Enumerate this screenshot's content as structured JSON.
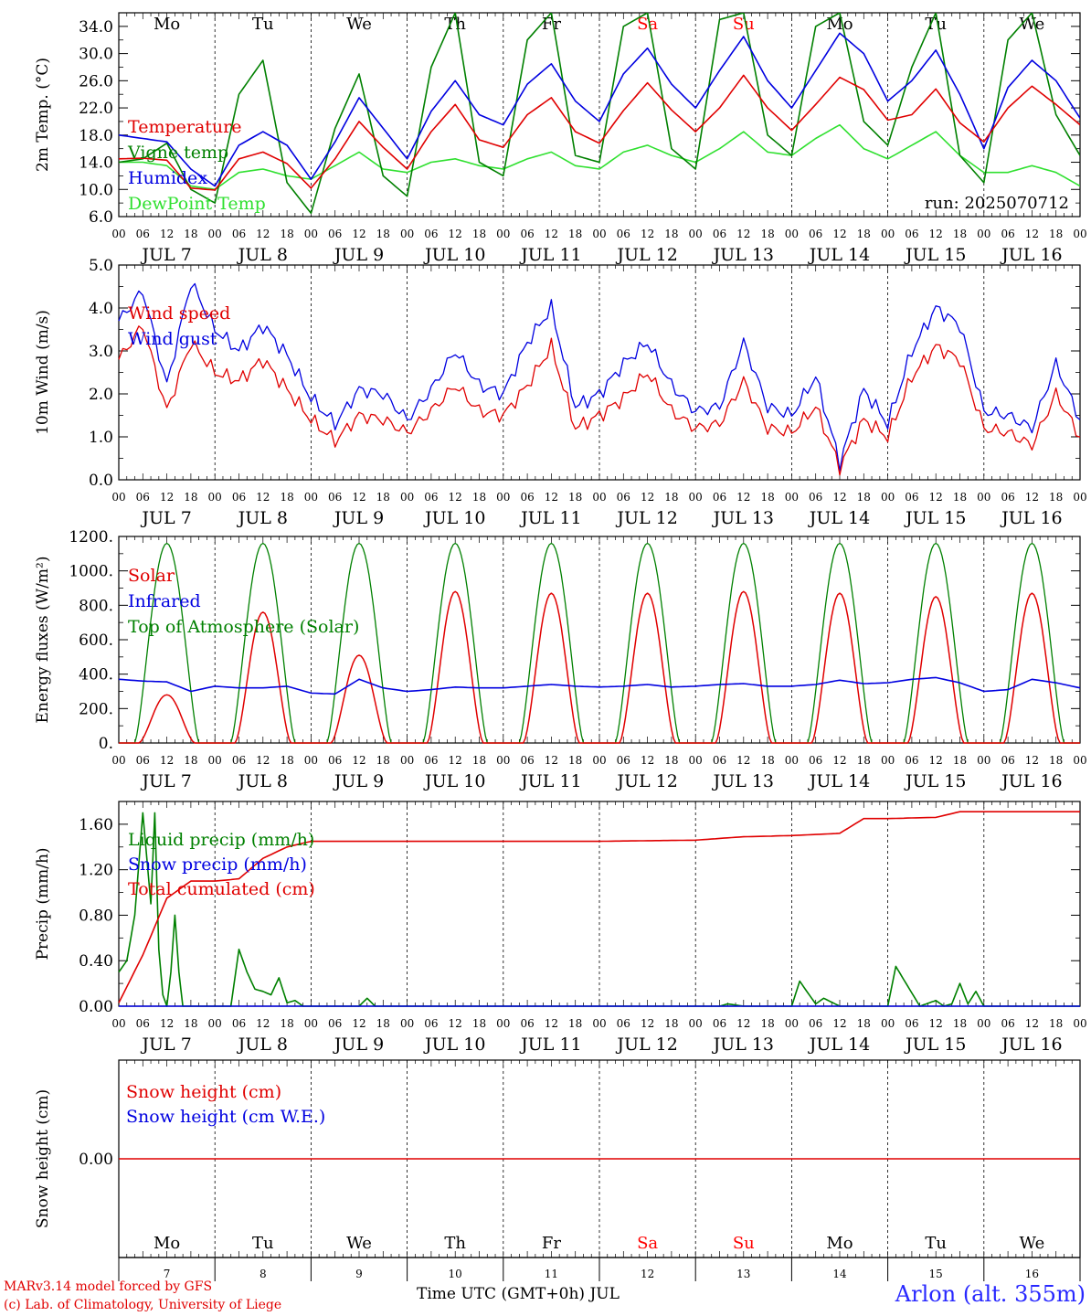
{
  "run_label": "run: 2025070712",
  "footer": {
    "credit_line1": "MARv3.14 model forced by GFS",
    "credit_line2": "(c) Lab. of Climatology, University of Liege",
    "xaxis_title": "Time UTC (GMT+0h) JUL",
    "station": "Arlon (alt. 355m)"
  },
  "weekdays": [
    {
      "label": "Mo",
      "weekend": false
    },
    {
      "label": "Tu",
      "weekend": false
    },
    {
      "label": "We",
      "weekend": false
    },
    {
      "label": "Th",
      "weekend": false
    },
    {
      "label": "Fr",
      "weekend": false
    },
    {
      "label": "Sa",
      "weekend": true
    },
    {
      "label": "Su",
      "weekend": true
    },
    {
      "label": "Mo",
      "weekend": false
    },
    {
      "label": "Tu",
      "weekend": false
    },
    {
      "label": "We",
      "weekend": false
    }
  ],
  "date_labels": [
    "JUL  7",
    "JUL  8",
    "JUL  9",
    "JUL 10",
    "JUL 11",
    "JUL 12",
    "JUL 13",
    "JUL 14",
    "JUL 15",
    "JUL 16"
  ],
  "hour_labels": [
    "00",
    "06",
    "12",
    "18"
  ],
  "bottom_day_numbers": [
    "7",
    "8",
    "9",
    "10",
    "11",
    "12",
    "13",
    "14",
    "15",
    "16"
  ],
  "colors": {
    "red": "#e00000",
    "green": "#008000",
    "blue": "#0000e0",
    "lightgreen": "#30e030",
    "weekend": "#ff0000"
  },
  "chart_data": [
    {
      "type": "line",
      "ylabel": "2m Temp. (°C)",
      "ylim": [
        6,
        36
      ],
      "yticks": [
        "6.0",
        "10.0",
        "14.0",
        "18.0",
        "22.0",
        "26.0",
        "30.0",
        "34.0"
      ],
      "xunit": "hours since JUL 7 00 UTC",
      "series": [
        {
          "name": "Temperature",
          "color": "red",
          "x": [
            0,
            6,
            12,
            18,
            24,
            30,
            36,
            42,
            48,
            54,
            60,
            66,
            72,
            78,
            84,
            90,
            96,
            102,
            108,
            114,
            120,
            126,
            132,
            138,
            144,
            150,
            156,
            162,
            168,
            174,
            180,
            186,
            192,
            198,
            204,
            210,
            216,
            222,
            228,
            234,
            240
          ],
          "values": [
            14.5,
            14.6,
            14.3,
            10.2,
            9.9,
            14.5,
            15.5,
            13.8,
            10.2,
            14.5,
            20.0,
            16.2,
            13.0,
            18.5,
            22.5,
            17.3,
            16.2,
            21.0,
            23.5,
            18.5,
            16.8,
            21.6,
            25.7,
            21.7,
            18.5,
            22.0,
            26.8,
            22.0,
            18.7,
            22.5,
            26.5,
            24.7,
            20.2,
            21.0,
            24.8,
            19.8,
            17.0,
            22.0,
            25.2,
            22.5,
            19.5
          ]
        },
        {
          "name": "Vigne temp",
          "color": "green",
          "x": [
            0,
            6,
            12,
            18,
            24,
            30,
            36,
            42,
            48,
            54,
            60,
            66,
            72,
            78,
            84,
            90,
            96,
            102,
            108,
            114,
            120,
            126,
            132,
            138,
            144,
            150,
            156,
            162,
            168,
            174,
            180,
            186,
            192,
            198,
            204,
            210,
            216,
            222,
            228,
            234,
            240
          ],
          "values": [
            14.0,
            14.5,
            16.8,
            10.0,
            8.0,
            24.0,
            29.0,
            11.0,
            6.5,
            19.0,
            27.0,
            12.0,
            9.0,
            28.0,
            36.0,
            14.0,
            12.0,
            32.0,
            36.0,
            15.0,
            14.0,
            34.0,
            36.0,
            16.0,
            13.0,
            35.0,
            36.0,
            18.0,
            15.0,
            34.0,
            36.0,
            20.0,
            16.5,
            28.0,
            36.0,
            15.0,
            11.0,
            32.0,
            36.0,
            21.0,
            15.0
          ]
        },
        {
          "name": "Humidex",
          "color": "blue",
          "x": [
            0,
            6,
            12,
            18,
            24,
            30,
            36,
            42,
            48,
            54,
            60,
            66,
            72,
            78,
            84,
            90,
            96,
            102,
            108,
            114,
            120,
            126,
            132,
            138,
            144,
            150,
            156,
            162,
            168,
            174,
            180,
            186,
            192,
            198,
            204,
            210,
            216,
            222,
            228,
            234,
            240
          ],
          "values": [
            18.0,
            17.5,
            17.0,
            13.0,
            10.5,
            16.5,
            18.5,
            16.5,
            11.5,
            17.0,
            23.5,
            19.0,
            14.5,
            21.5,
            26.0,
            21.0,
            19.5,
            25.5,
            28.5,
            23.0,
            20.0,
            27.0,
            30.8,
            25.5,
            22.0,
            27.5,
            32.5,
            26.0,
            22.0,
            27.5,
            33.0,
            30.0,
            23.0,
            26.0,
            30.5,
            24.0,
            16.0,
            25.0,
            29.0,
            26.0,
            20.5
          ]
        },
        {
          "name": "DewPoint Temp",
          "color": "lightgreen",
          "x": [
            0,
            6,
            12,
            18,
            24,
            30,
            36,
            42,
            48,
            54,
            60,
            66,
            72,
            78,
            84,
            90,
            96,
            102,
            108,
            114,
            120,
            126,
            132,
            138,
            144,
            150,
            156,
            162,
            168,
            174,
            180,
            186,
            192,
            198,
            204,
            210,
            216,
            222,
            228,
            234,
            240
          ],
          "values": [
            14.0,
            14.0,
            13.5,
            10.5,
            10.0,
            12.5,
            13.0,
            12.0,
            11.5,
            13.5,
            15.5,
            13.0,
            12.5,
            14.0,
            14.5,
            13.5,
            13.0,
            14.5,
            15.5,
            13.5,
            13.0,
            15.5,
            16.5,
            15.0,
            14.0,
            16.0,
            18.5,
            15.5,
            15.0,
            17.5,
            19.5,
            16.0,
            14.5,
            16.5,
            18.5,
            15.0,
            12.5,
            12.5,
            13.5,
            12.5,
            10.5
          ]
        }
      ]
    },
    {
      "type": "line",
      "ylabel": "10m Wind (m/s)",
      "ylim": [
        0,
        5
      ],
      "yticks": [
        "0.0",
        "1.0",
        "2.0",
        "3.0",
        "4.0",
        "5.0"
      ],
      "xunit": "hours since JUL 7 00 UTC",
      "series": [
        {
          "name": "Wind speed",
          "color": "red",
          "x": [
            0,
            6,
            12,
            18,
            24,
            30,
            36,
            42,
            48,
            54,
            60,
            66,
            72,
            78,
            84,
            90,
            96,
            102,
            108,
            114,
            120,
            126,
            132,
            138,
            144,
            150,
            156,
            162,
            168,
            174,
            180,
            186,
            192,
            198,
            204,
            210,
            216,
            222,
            228,
            234,
            240
          ],
          "values": [
            2.8,
            3.6,
            1.6,
            3.2,
            2.5,
            2.3,
            2.8,
            2.1,
            1.4,
            0.9,
            1.5,
            1.4,
            1.1,
            1.6,
            2.2,
            1.6,
            1.5,
            2.2,
            3.1,
            1.2,
            1.5,
            1.9,
            2.5,
            1.6,
            1.2,
            1.3,
            2.3,
            1.2,
            1.1,
            1.7,
            0.3,
            1.4,
            1.0,
            2.4,
            3.1,
            2.8,
            1.2,
            1.1,
            0.8,
            2.0,
            1.0
          ]
        },
        {
          "name": "Wind gust",
          "color": "blue",
          "x": [
            0,
            6,
            12,
            18,
            24,
            30,
            36,
            42,
            48,
            54,
            60,
            66,
            72,
            78,
            84,
            90,
            96,
            102,
            108,
            114,
            120,
            126,
            132,
            138,
            144,
            150,
            156,
            162,
            168,
            174,
            180,
            186,
            192,
            198,
            204,
            210,
            216,
            222,
            228,
            234,
            240
          ],
          "values": [
            3.7,
            4.4,
            2.2,
            4.6,
            3.5,
            3.0,
            3.6,
            2.9,
            1.9,
            1.3,
            2.1,
            2.0,
            1.4,
            2.1,
            3.0,
            2.2,
            2.0,
            3.2,
            4.0,
            1.7,
            2.0,
            2.7,
            3.2,
            2.2,
            1.6,
            1.7,
            3.2,
            1.7,
            1.5,
            2.4,
            0.4,
            2.1,
            1.3,
            3.0,
            4.0,
            3.6,
            1.6,
            1.5,
            1.2,
            2.7,
            1.4
          ]
        }
      ]
    },
    {
      "type": "line",
      "ylabel": "Energy fluxes (W/m²)",
      "ylim": [
        0,
        1200
      ],
      "yticks": [
        "0.",
        "200.",
        "400.",
        "600.",
        "800.",
        "1000.",
        "1200."
      ],
      "xunit": "hours since JUL 7 00 UTC",
      "daily_peak_hour": 12,
      "top_of_atmosphere_daily_peak": 1160,
      "series": [
        {
          "name": "Solar",
          "color": "red",
          "daily_peak": [
            280,
            760,
            510,
            880,
            870,
            870,
            880,
            870,
            850,
            870
          ]
        },
        {
          "name": "Infrared",
          "color": "blue",
          "x": [
            0,
            6,
            12,
            18,
            24,
            30,
            36,
            42,
            48,
            54,
            60,
            66,
            72,
            78,
            84,
            90,
            96,
            102,
            108,
            114,
            120,
            126,
            132,
            138,
            144,
            150,
            156,
            162,
            168,
            174,
            180,
            186,
            192,
            198,
            204,
            210,
            216,
            222,
            228,
            234,
            240
          ],
          "values": [
            370,
            360,
            355,
            300,
            330,
            320,
            320,
            330,
            290,
            285,
            370,
            320,
            300,
            310,
            325,
            320,
            320,
            330,
            340,
            330,
            325,
            330,
            340,
            325,
            330,
            340,
            345,
            330,
            330,
            340,
            365,
            345,
            350,
            370,
            380,
            350,
            300,
            310,
            370,
            350,
            320
          ]
        },
        {
          "name": "Top of Atmosphere (Solar)",
          "color": "green"
        }
      ]
    },
    {
      "type": "line",
      "ylabel": "Precip (mm/h)",
      "ylim": [
        0,
        1.8
      ],
      "yticks": [
        "0.00",
        "0.40",
        "0.80",
        "1.20",
        "1.60"
      ],
      "xunit": "hours since JUL 7 00 UTC",
      "series": [
        {
          "name": "Liquid precip (mm/h)",
          "color": "green",
          "x": [
            0,
            2,
            4,
            6,
            8,
            9,
            10,
            11,
            12,
            13,
            14,
            15,
            16,
            18,
            20,
            22,
            24,
            26,
            28,
            30,
            32,
            34,
            36,
            38,
            40,
            42,
            44,
            46,
            48,
            60,
            62,
            64,
            72,
            150,
            152,
            156,
            168,
            170,
            174,
            176,
            180,
            182,
            192,
            194,
            200,
            204,
            206,
            208,
            210,
            212,
            214,
            216,
            240
          ],
          "values": [
            0.3,
            0.4,
            0.8,
            1.7,
            0.9,
            1.7,
            0.5,
            0.1,
            0.0,
            0.3,
            0.8,
            0.3,
            0.0,
            0.0,
            0.0,
            0.0,
            0.0,
            0.0,
            0.0,
            0.5,
            0.3,
            0.15,
            0.13,
            0.1,
            0.25,
            0.03,
            0.05,
            0.0,
            0.0,
            0.0,
            0.07,
            0.0,
            0.0,
            0.0,
            0.02,
            0.0,
            0.0,
            0.22,
            0.02,
            0.07,
            0.0,
            0.0,
            0.0,
            0.35,
            0.0,
            0.05,
            0.0,
            0.02,
            0.2,
            0.02,
            0.13,
            0.0,
            0.0
          ]
        },
        {
          "name": "Snow precip (mm/h)",
          "color": "blue",
          "x": [
            0,
            240
          ],
          "values": [
            0.0,
            0.0
          ]
        },
        {
          "name": "Total cumulated (cm)",
          "color": "red",
          "x": [
            0,
            6,
            12,
            18,
            24,
            30,
            36,
            42,
            48,
            60,
            72,
            120,
            144,
            156,
            168,
            180,
            186,
            192,
            204,
            210,
            216,
            228,
            240
          ],
          "values": [
            0.03,
            0.45,
            0.95,
            1.1,
            1.1,
            1.12,
            1.3,
            1.4,
            1.45,
            1.45,
            1.45,
            1.45,
            1.46,
            1.49,
            1.5,
            1.52,
            1.65,
            1.65,
            1.66,
            1.71,
            1.71,
            1.71,
            1.71
          ]
        }
      ]
    },
    {
      "type": "line",
      "ylabel": "Snow height (cm)",
      "ylim": [
        -0.01,
        0.01
      ],
      "yticks": [
        "0.00"
      ],
      "xunit": "hours since JUL 7 00 UTC",
      "series": [
        {
          "name": "Snow height (cm)",
          "color": "red",
          "x": [
            0,
            240
          ],
          "values": [
            0.0,
            0.0
          ]
        },
        {
          "name": "Snow height (cm W.E.)",
          "color": "blue"
        }
      ]
    }
  ]
}
